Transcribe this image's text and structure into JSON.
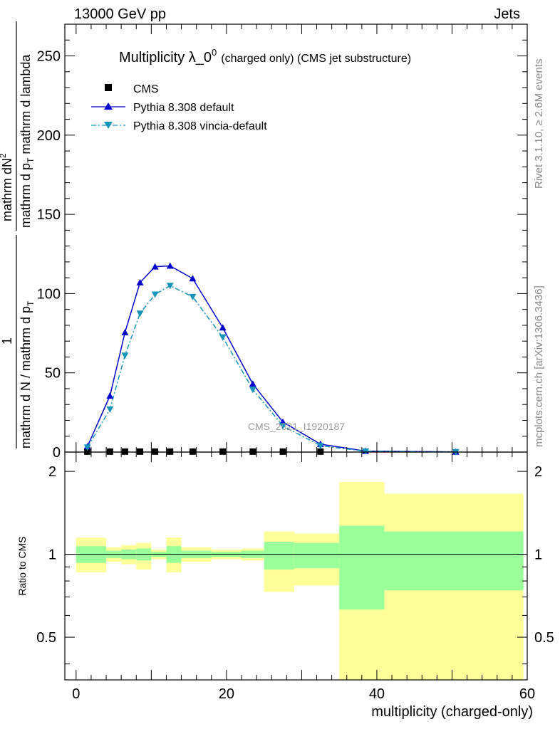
{
  "header": {
    "left": "13000 GeV pp",
    "right": "Jets"
  },
  "side_labels": {
    "rivet": "Rivet 3.1.10, ≥ 2.6M events",
    "mcplots": "mcplots.cern.ch [arXiv:1306.3436]"
  },
  "watermark": "CMS_2021_I1920187",
  "chart_data": [
    {
      "type": "line",
      "title_main": "Multiplicity λ_0",
      "title_sup": "0",
      "title_small": "(charged only) (CMS jet substructure)",
      "ylabel_num": "mathrm dN",
      "ylabel_num_sup": "2",
      "ylabel_den1": "mathrm d p",
      "ylabel_den1_sub": "T",
      "ylabel_den2": " mathrm d lambda",
      "ylabel_pre": "1",
      "ylabel_pre_den": "mathrm d N / mathrm d p",
      "ylabel_pre_den_sub": "T",
      "ylim": [
        0,
        270
      ],
      "xlim": [
        -1.5,
        60
      ],
      "yticks": [
        0,
        50,
        100,
        150,
        200,
        250
      ],
      "legend": [
        {
          "name": "CMS",
          "marker": "square",
          "color": "#000000"
        },
        {
          "name": "Pythia 8.308 default",
          "marker": "triangle-up",
          "color": "#0000cc"
        },
        {
          "name": "Pythia 8.308 vincia-default",
          "marker": "triangle-down",
          "color": "#1595b9"
        }
      ],
      "series": [
        {
          "name": "CMS",
          "x": [
            1.5,
            4.5,
            6.5,
            8.5,
            10.5,
            12.5,
            15.5,
            19.5,
            23.5,
            27.5,
            32.5
          ],
          "y": [
            0.3,
            0.3,
            0.3,
            0.3,
            0.3,
            0.3,
            0.3,
            0.3,
            0.3,
            0.3,
            0.3
          ]
        },
        {
          "name": "Pythia 8.308 default",
          "x": [
            1.5,
            4.5,
            6.5,
            8.5,
            10.5,
            12.5,
            15.5,
            19.5,
            23.5,
            27.5,
            32.5,
            38.5,
            50.5
          ],
          "y": [
            3.5,
            35.5,
            75.5,
            107.0,
            117.0,
            117.5,
            109.5,
            78.5,
            43.0,
            19.0,
            5.0,
            0.6,
            0.1
          ]
        },
        {
          "name": "Pythia 8.308 vincia-default",
          "x": [
            1.5,
            4.5,
            6.5,
            8.5,
            10.5,
            12.5,
            15.5,
            19.5,
            23.5,
            27.5,
            32.5,
            38.5,
            50.5
          ],
          "y": [
            3.0,
            27.0,
            61.0,
            87.5,
            99.5,
            105.0,
            98.0,
            72.5,
            39.5,
            16.5,
            4.0,
            0.5,
            0.1
          ]
        }
      ]
    },
    {
      "type": "area",
      "ylabel": "Ratio to CMS",
      "xlabel": "multiplicity (charged-only)",
      "ylim": [
        0.35,
        2.35
      ],
      "xlim": [
        -1.5,
        60
      ],
      "xticks": [
        0,
        20,
        40,
        60
      ],
      "yticks": [
        0.5,
        1,
        2
      ],
      "reference_line": 1,
      "bins": [
        {
          "lo": 0,
          "hi": 4,
          "inner": [
            0.93,
            1.07
          ],
          "outer": [
            0.86,
            1.15
          ]
        },
        {
          "lo": 4,
          "hi": 6,
          "inner": [
            0.97,
            1.03
          ],
          "outer": [
            0.94,
            1.06
          ]
        },
        {
          "lo": 6,
          "hi": 8,
          "inner": [
            0.96,
            1.04
          ],
          "outer": [
            0.92,
            1.08
          ]
        },
        {
          "lo": 8,
          "hi": 10,
          "inner": [
            0.95,
            1.05
          ],
          "outer": [
            0.88,
            1.1
          ]
        },
        {
          "lo": 10,
          "hi": 12,
          "inner": [
            0.98,
            1.02
          ],
          "outer": [
            0.96,
            1.04
          ]
        },
        {
          "lo": 12,
          "hi": 14,
          "inner": [
            0.93,
            1.07
          ],
          "outer": [
            0.86,
            1.15
          ]
        },
        {
          "lo": 14,
          "hi": 18,
          "inner": [
            0.97,
            1.03
          ],
          "outer": [
            0.94,
            1.06
          ]
        },
        {
          "lo": 18,
          "hi": 22,
          "inner": [
            0.98,
            1.02
          ],
          "outer": [
            0.96,
            1.04
          ]
        },
        {
          "lo": 22,
          "hi": 25,
          "inner": [
            0.97,
            1.03
          ],
          "outer": [
            0.95,
            1.05
          ]
        },
        {
          "lo": 25,
          "hi": 29,
          "inner": [
            0.88,
            1.11
          ],
          "outer": [
            0.73,
            1.21
          ]
        },
        {
          "lo": 29,
          "hi": 35,
          "inner": [
            0.89,
            1.1
          ],
          "outer": [
            0.77,
            1.19
          ]
        },
        {
          "lo": 35,
          "hi": 41,
          "inner": [
            0.63,
            1.27
          ],
          "outer": [
            0.35,
            1.83
          ]
        },
        {
          "lo": 41,
          "hi": 59.5,
          "inner": [
            0.74,
            1.21
          ],
          "outer": [
            0.35,
            1.66
          ]
        }
      ]
    }
  ]
}
